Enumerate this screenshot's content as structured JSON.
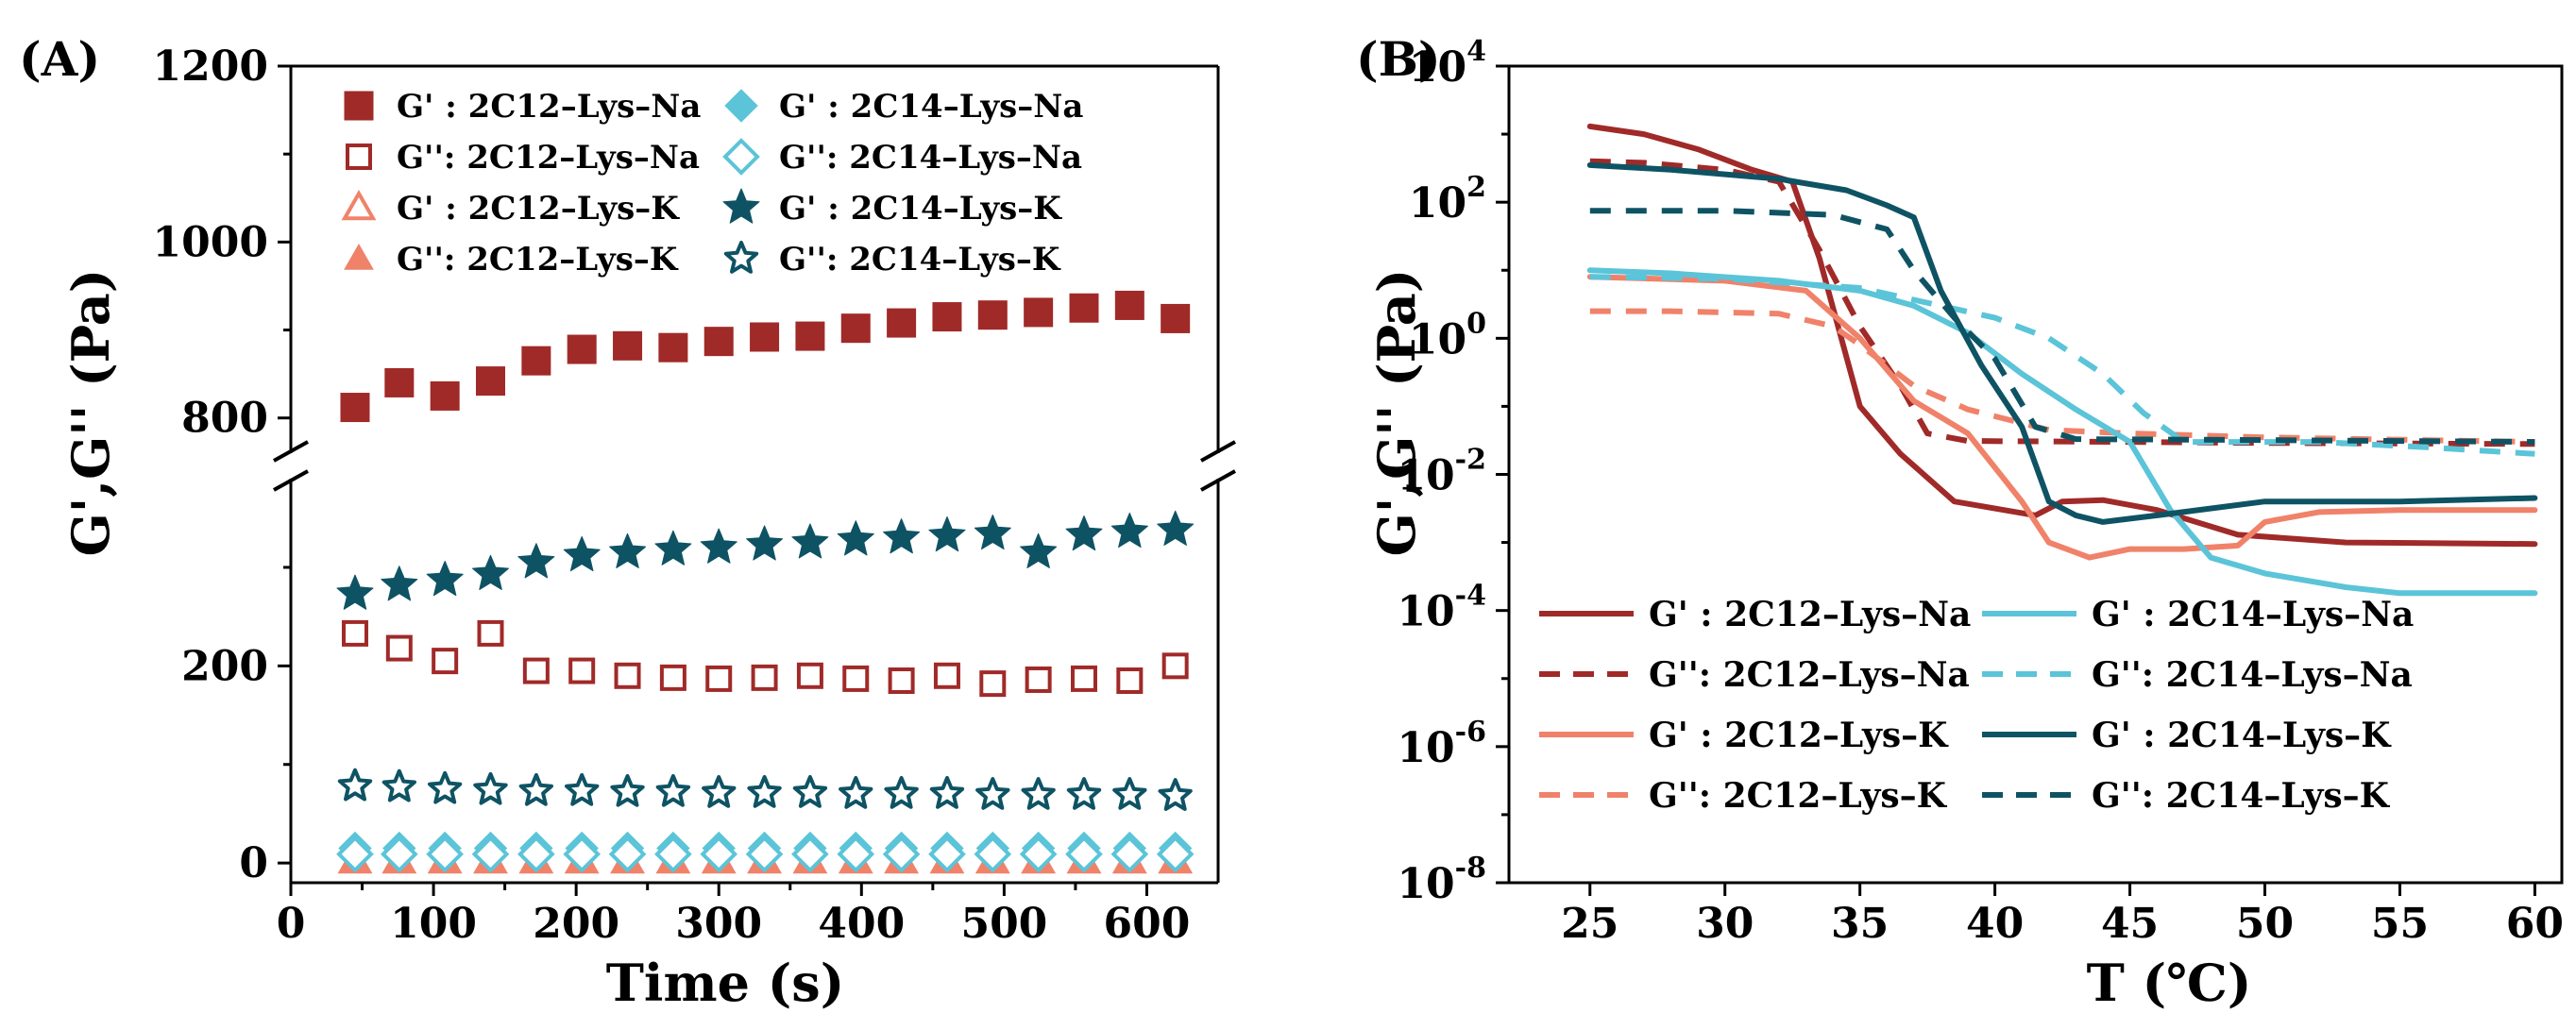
{
  "colors": {
    "c12na": "#a02a28",
    "c12k": "#f0826a",
    "c14na": "#5bc4d8",
    "c14k": "#0e5364"
  },
  "chart_data": [
    {
      "panel": "(A)",
      "type": "scatter",
      "xlabel": "Time (s)",
      "ylabel": "G',G'' (Pa)",
      "xlim": [
        0,
        650
      ],
      "x_ticks": [
        "0",
        "100",
        "200",
        "300",
        "400",
        "500",
        "600"
      ],
      "y_ticks_upper": [
        "800",
        "1000",
        "1200"
      ],
      "y_ticks_lower": [
        "0",
        "200"
      ],
      "y_axis_break": {
        "lower_range": [
          -20,
          390
        ],
        "upper_range": [
          760,
          1200
        ]
      },
      "x": [
        45,
        76,
        108,
        140,
        172,
        204,
        236,
        268,
        300,
        332,
        364,
        396,
        428,
        460,
        492,
        524,
        556,
        588,
        620
      ],
      "series": [
        {
          "name": "G' : 2C12–Lys–Na",
          "color_key": "c12na",
          "marker": "square-filled",
          "values": [
            812,
            840,
            825,
            842,
            865,
            878,
            882,
            880,
            887,
            892,
            893,
            902,
            908,
            915,
            917,
            920,
            925,
            928,
            913
          ]
        },
        {
          "name": "G'': 2C12–Lys–Na",
          "color_key": "c12na",
          "marker": "square-open",
          "values": [
            233,
            218,
            205,
            233,
            195,
            195,
            190,
            188,
            187,
            188,
            190,
            187,
            185,
            190,
            182,
            186,
            187,
            185,
            200
          ]
        },
        {
          "name": "G' : 2C12–Lys–K",
          "color_key": "c12k",
          "marker": "triangle-open",
          "values": [
            2,
            2,
            2,
            2,
            2,
            2,
            2,
            2,
            2,
            2,
            2,
            2,
            2,
            2,
            2,
            2,
            2,
            2,
            2
          ]
        },
        {
          "name": "G'': 2C12–Lys–K",
          "color_key": "c12k",
          "marker": "triangle-filled",
          "values": [
            1,
            1,
            1,
            1,
            1,
            1,
            1,
            1,
            1,
            1,
            1,
            1,
            1,
            1,
            1,
            1,
            1,
            1,
            1
          ]
        },
        {
          "name": "G' : 2C14–Lys–Na",
          "color_key": "c14na",
          "marker": "diamond-filled",
          "values": [
            15,
            15,
            15,
            15,
            15,
            15,
            15,
            15,
            15,
            15,
            15,
            15,
            15,
            15,
            15,
            15,
            15,
            15,
            15
          ]
        },
        {
          "name": "G'': 2C14–Lys–Na",
          "color_key": "c14na",
          "marker": "diamond-open",
          "values": [
            9,
            9,
            9,
            9,
            9,
            9,
            9,
            9,
            9,
            9,
            9,
            9,
            9,
            9,
            9,
            9,
            9,
            9,
            9
          ]
        },
        {
          "name": "G' : 2C14–Lys–K",
          "color_key": "c14k",
          "marker": "star-filled",
          "values": [
            273,
            282,
            287,
            293,
            305,
            312,
            315,
            318,
            320,
            323,
            325,
            328,
            330,
            332,
            334,
            315,
            333,
            336,
            338
          ]
        },
        {
          "name": "G'': 2C14–Lys–K",
          "color_key": "c14k",
          "marker": "star-open",
          "values": [
            78,
            77,
            75,
            74,
            73,
            73,
            72,
            72,
            71,
            71,
            71,
            70,
            70,
            70,
            69,
            69,
            69,
            69,
            68
          ]
        }
      ],
      "legend_position": "top"
    },
    {
      "panel": "(B)",
      "type": "line",
      "xlabel": "T (℃)",
      "ylabel": "G',G'' (Pa)",
      "xlim": [
        22,
        61
      ],
      "ylim_log10": [
        -8,
        4
      ],
      "y_scale": "log",
      "x_ticks": [
        "25",
        "30",
        "35",
        "40",
        "45",
        "50",
        "55",
        "60"
      ],
      "y_ticks": [
        {
          "base": "10",
          "exp": "-8"
        },
        {
          "base": "10",
          "exp": "-6"
        },
        {
          "base": "10",
          "exp": "-4"
        },
        {
          "base": "10",
          "exp": "-2"
        },
        {
          "base": "10",
          "exp": "0"
        },
        {
          "base": "10",
          "exp": "2"
        },
        {
          "base": "10",
          "exp": "4"
        }
      ],
      "series": [
        {
          "name": "G' : 2C12–Lys–Na",
          "color_key": "c12na",
          "dash": false,
          "points": [
            [
              25,
              1300
            ],
            [
              27,
              1000
            ],
            [
              29,
              600
            ],
            [
              31,
              300
            ],
            [
              32.5,
              200
            ],
            [
              33.5,
              15
            ],
            [
              35,
              0.1
            ],
            [
              36.5,
              0.02
            ],
            [
              38.5,
              0.004
            ],
            [
              41.5,
              0.0025
            ],
            [
              42.5,
              0.004
            ],
            [
              44,
              0.0042
            ],
            [
              46,
              0.003
            ],
            [
              49,
              0.0013
            ],
            [
              53,
              0.001
            ],
            [
              60,
              0.00095
            ]
          ]
        },
        {
          "name": "G'': 2C12–Lys–Na",
          "color_key": "c12na",
          "dash": true,
          "points": [
            [
              25,
              400
            ],
            [
              27,
              380
            ],
            [
              30,
              300
            ],
            [
              32,
              200
            ],
            [
              33.5,
              20
            ],
            [
              35,
              1.5
            ],
            [
              36.5,
              0.2
            ],
            [
              37.5,
              0.04
            ],
            [
              39,
              0.031
            ],
            [
              45,
              0.03
            ],
            [
              50,
              0.029
            ],
            [
              60,
              0.028
            ]
          ]
        },
        {
          "name": "G' : 2C12–Lys–K",
          "color_key": "c12k",
          "dash": false,
          "points": [
            [
              25,
              8
            ],
            [
              30,
              7
            ],
            [
              33,
              5
            ],
            [
              35,
              1
            ],
            [
              37,
              0.12
            ],
            [
              39,
              0.04
            ],
            [
              41,
              0.004
            ],
            [
              42,
              0.001
            ],
            [
              43.5,
              0.0006
            ],
            [
              45,
              0.0008
            ],
            [
              47,
              0.0008
            ],
            [
              49,
              0.0009
            ],
            [
              50,
              0.002
            ],
            [
              52,
              0.0028
            ],
            [
              55,
              0.003
            ],
            [
              60,
              0.003
            ]
          ]
        },
        {
          "name": "G'': 2C12–Lys–K",
          "color_key": "c12k",
          "dash": true,
          "points": [
            [
              25,
              2.5
            ],
            [
              28,
              2.5
            ],
            [
              32,
              2.3
            ],
            [
              34,
              1.5
            ],
            [
              35,
              0.8
            ],
            [
              37,
              0.2
            ],
            [
              39,
              0.09
            ],
            [
              42,
              0.045
            ],
            [
              45,
              0.04
            ],
            [
              50,
              0.035
            ],
            [
              60,
              0.03
            ]
          ]
        },
        {
          "name": "G' : 2C14–Lys–Na",
          "color_key": "c14na",
          "dash": false,
          "points": [
            [
              25,
              10
            ],
            [
              28,
              9
            ],
            [
              32,
              7
            ],
            [
              35,
              5
            ],
            [
              37,
              3
            ],
            [
              39,
              1.2
            ],
            [
              41,
              0.3
            ],
            [
              43,
              0.09
            ],
            [
              45,
              0.03
            ],
            [
              46.5,
              0.003
            ],
            [
              48,
              0.0006
            ],
            [
              50,
              0.00035
            ],
            [
              53,
              0.00022
            ],
            [
              55,
              0.00018
            ],
            [
              60,
              0.00018
            ]
          ]
        },
        {
          "name": "G'': 2C14–Lys–Na",
          "color_key": "c14na",
          "dash": true,
          "points": [
            [
              25,
              8
            ],
            [
              30,
              7.5
            ],
            [
              35,
              5.5
            ],
            [
              38,
              3
            ],
            [
              40,
              2
            ],
            [
              42,
              1
            ],
            [
              44,
              0.3
            ],
            [
              45.5,
              0.08
            ],
            [
              47,
              0.03
            ],
            [
              52,
              0.03
            ],
            [
              56,
              0.025
            ],
            [
              60,
              0.02
            ]
          ]
        },
        {
          "name": "G' : 2C14–Lys–K",
          "color_key": "c14k",
          "dash": false,
          "points": [
            [
              25,
              350
            ],
            [
              28,
              300
            ],
            [
              32,
              220
            ],
            [
              34.5,
              150
            ],
            [
              36,
              90
            ],
            [
              37,
              60
            ],
            [
              38,
              5
            ],
            [
              39.5,
              0.4
            ],
            [
              41,
              0.05
            ],
            [
              42,
              0.004
            ],
            [
              43,
              0.0025
            ],
            [
              44,
              0.002
            ],
            [
              46,
              0.0025
            ],
            [
              50,
              0.004
            ],
            [
              55,
              0.004
            ],
            [
              60,
              0.0045
            ]
          ]
        },
        {
          "name": "G'': 2C14–Lys–K",
          "color_key": "c14k",
          "dash": true,
          "points": [
            [
              25,
              75
            ],
            [
              30,
              75
            ],
            [
              34,
              65
            ],
            [
              36,
              40
            ],
            [
              37,
              10
            ],
            [
              38.5,
              2
            ],
            [
              40,
              0.5
            ],
            [
              41.5,
              0.05
            ],
            [
              43,
              0.033
            ],
            [
              50,
              0.032
            ],
            [
              60,
              0.03
            ]
          ]
        }
      ],
      "legend_position": "bottom"
    }
  ]
}
